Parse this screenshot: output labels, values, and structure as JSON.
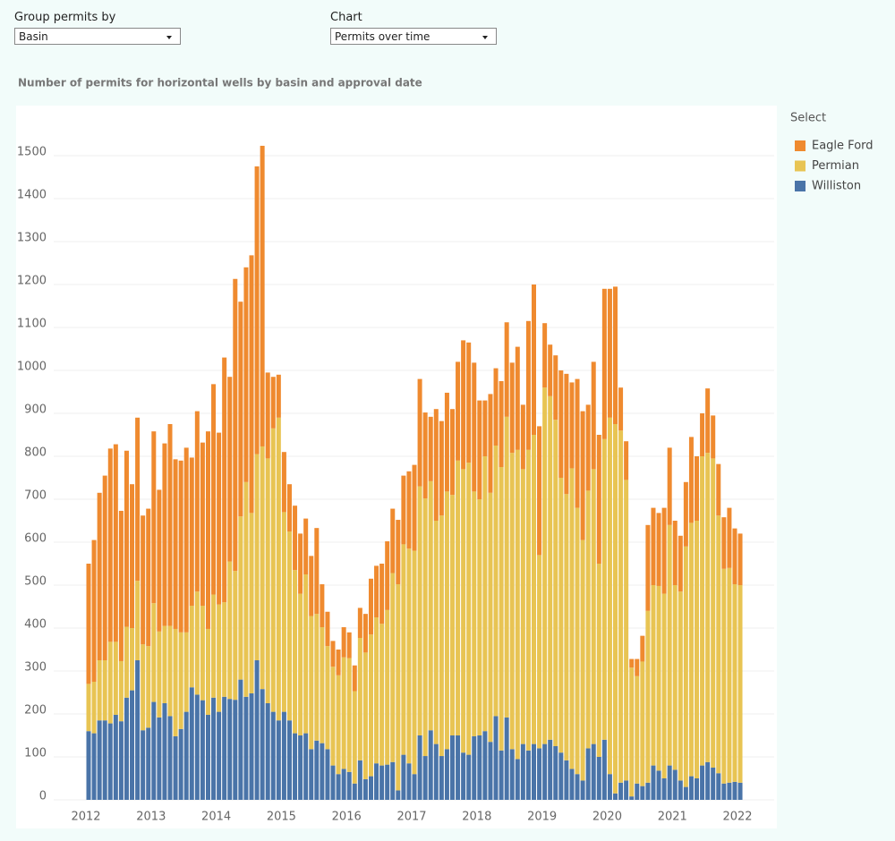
{
  "controls": [
    {
      "label": "Group permits by",
      "value": "Basin"
    },
    {
      "label": "Chart",
      "value": "Permits over time"
    }
  ],
  "chart_data": {
    "type": "bar",
    "stacked": true,
    "title": "Number of permits for horizontal wells by basin and approval date",
    "legend_title": "Select",
    "legend": "right",
    "grid": true,
    "categories": [
      "2012",
      null,
      null,
      null,
      null,
      null,
      null,
      null,
      null,
      null,
      null,
      null,
      "2013",
      null,
      null,
      null,
      null,
      null,
      null,
      null,
      null,
      null,
      null,
      null,
      "2014",
      null,
      null,
      null,
      null,
      null,
      null,
      null,
      null,
      null,
      null,
      null,
      "2015",
      null,
      null,
      null,
      null,
      null,
      null,
      null,
      null,
      null,
      null,
      null,
      "2016",
      null,
      null,
      null,
      null,
      null,
      null,
      null,
      null,
      null,
      null,
      null,
      "2017",
      null,
      null,
      null,
      null,
      null,
      null,
      null,
      null,
      null,
      null,
      null,
      "2018",
      null,
      null,
      null,
      null,
      null,
      null,
      null,
      null,
      null,
      null,
      null,
      "2019",
      null,
      null,
      null,
      null,
      null,
      null,
      null,
      null,
      null,
      null,
      null,
      "2020",
      null,
      null,
      null,
      null,
      null,
      null,
      null,
      null,
      null,
      null,
      null,
      "2021",
      null,
      null,
      null,
      null,
      null,
      null,
      null,
      null,
      null,
      null,
      null,
      "2022"
    ],
    "series": [
      {
        "name": "Eagle Ford",
        "color": "#ef8a2f",
        "values": [
          280,
          330,
          390,
          430,
          450,
          460,
          350,
          410,
          335,
          380,
          300,
          320,
          400,
          330,
          425,
          470,
          395,
          400,
          430,
          345,
          420,
          380,
          460,
          490,
          400,
          570,
          430,
          680,
          500,
          500,
          600,
          670,
          700,
          200,
          120,
          100,
          140,
          110,
          150,
          140,
          130,
          140,
          200,
          100,
          80,
          60,
          60,
          70,
          60,
          60,
          70,
          90,
          130,
          120,
          140,
          160,
          150,
          150,
          160,
          180,
          200,
          250,
          200,
          150,
          260,
          220,
          230,
          200,
          230,
          300,
          280,
          300,
          230,
          130,
          230,
          180,
          200,
          220,
          210,
          240,
          150,
          300,
          350,
          300,
          150,
          120,
          150,
          250,
          280,
          200,
          300,
          300,
          200,
          250,
          300,
          350,
          300,
          320,
          100,
          90,
          20,
          40,
          60,
          200,
          180,
          170,
          200,
          180,
          150,
          130,
          150,
          200,
          150,
          100,
          150,
          100,
          120,
          120,
          140,
          130,
          120
        ]
      },
      {
        "name": "Permian",
        "color": "#e8c453",
        "values": [
          110,
          120,
          140,
          140,
          190,
          170,
          140,
          165,
          145,
          185,
          200,
          190,
          230,
          200,
          180,
          210,
          250,
          225,
          185,
          190,
          240,
          220,
          200,
          240,
          250,
          220,
          320,
          300,
          380,
          500,
          420,
          480,
          565,
          570,
          660,
          705,
          465,
          440,
          380,
          330,
          370,
          310,
          295,
          270,
          240,
          230,
          230,
          260,
          265,
          215,
          285,
          295,
          330,
          340,
          330,
          360,
          440,
          480,
          490,
          500,
          520,
          580,
          600,
          580,
          520,
          560,
          600,
          560,
          640,
          660,
          680,
          570,
          550,
          640,
          580,
          630,
          660,
          700,
          690,
          720,
          640,
          700,
          720,
          450,
          830,
          800,
          760,
          640,
          620,
          700,
          620,
          560,
          600,
          640,
          450,
          700,
          830,
          860,
          820,
          700,
          300,
          250,
          290,
          400,
          420,
          430,
          430,
          560,
          430,
          440,
          560,
          590,
          600,
          720,
          720,
          720,
          600,
          500,
          500,
          460,
          460
        ]
      },
      {
        "name": "Williston",
        "color": "#4a74a8",
        "values": [
          160,
          155,
          185,
          185,
          178,
          198,
          183,
          238,
          255,
          325,
          162,
          168,
          228,
          192,
          225,
          195,
          148,
          165,
          205,
          262,
          245,
          232,
          198,
          238,
          205,
          240,
          235,
          233,
          280,
          240,
          248,
          325,
          258,
          225,
          205,
          185,
          205,
          185,
          155,
          150,
          155,
          118,
          138,
          132,
          118,
          80,
          60,
          72,
          65,
          38,
          92,
          48,
          55,
          85,
          80,
          82,
          88,
          22,
          105,
          85,
          60,
          150,
          102,
          162,
          130,
          102,
          118,
          150,
          150,
          110,
          105,
          148,
          150,
          160,
          135,
          195,
          115,
          192,
          118,
          95,
          130,
          115,
          130,
          120,
          130,
          140,
          125,
          110,
          92,
          72,
          60,
          45,
          120,
          130,
          100,
          140,
          60,
          15,
          40,
          45,
          8,
          38,
          32,
          40,
          80,
          68,
          50,
          80,
          70,
          45,
          30,
          55,
          50,
          80,
          88,
          75,
          62,
          38,
          40,
          42,
          40
        ]
      }
    ],
    "ylim": [
      0,
      1550
    ],
    "yticks": [
      0,
      100,
      200,
      300,
      400,
      500,
      600,
      700,
      800,
      900,
      1000,
      1100,
      1200,
      1300,
      1400,
      1500
    ]
  }
}
